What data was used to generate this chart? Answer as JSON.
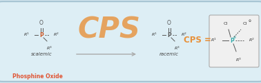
{
  "bg_color": "#ddeef5",
  "border_color": "#99bbcc",
  "fig_bg": "#c8dde8",
  "phosphine_oxide_label": "Phosphine Oxide",
  "phosphine_oxide_color": "#e05535",
  "scalemic_label": "scalemic",
  "racemic_label": "racemic",
  "cps_label": "CPS =",
  "cps_color": "#e8913a",
  "cps_script": "CPS",
  "arrow_color": "#aaaaaa",
  "text_color": "#444444",
  "P_color_left": "#cc5522",
  "P_color_right": "#555555",
  "P_color_box": "#33aaaa",
  "bond_color": "#555555",
  "R_color": "#333333",
  "Cl_color": "#333333"
}
